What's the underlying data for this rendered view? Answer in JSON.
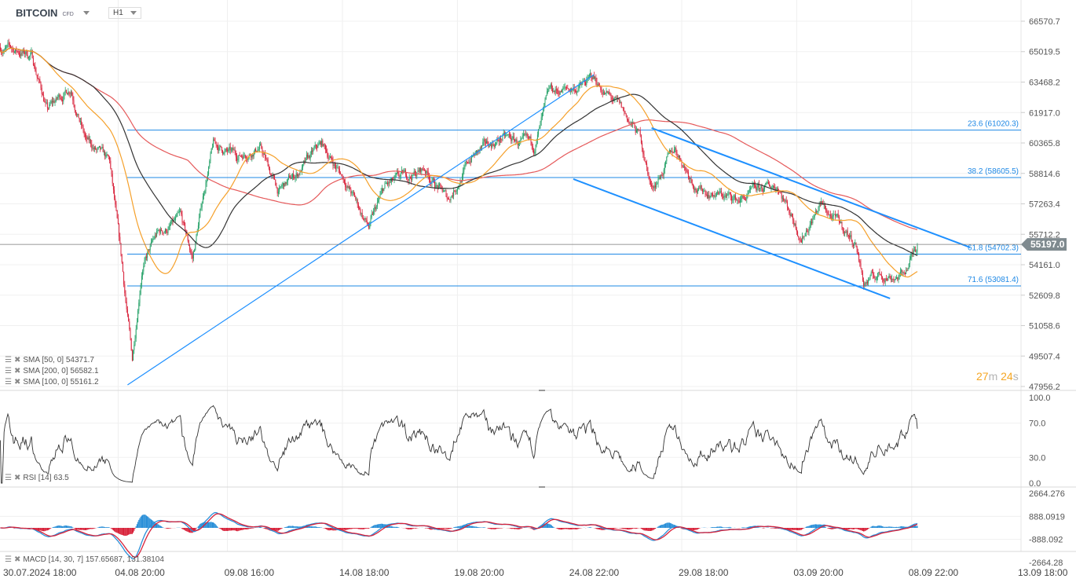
{
  "header": {
    "symbol": "BITCOIN",
    "instrument_type": "CFD",
    "timeframe": "H1"
  },
  "countdown": {
    "minutes": "27",
    "min_unit": "m",
    "seconds": "24",
    "sec_unit": "s"
  },
  "legend": {
    "sma50": "SMA [50, 0] 54371.7",
    "sma200": "SMA [200, 0] 56582.1",
    "sma100": "SMA [100, 0] 55161.2",
    "rsi": "RSI [14] 63.5",
    "macd": "MACD [14, 30, 7] 157.65687, 131.38104"
  },
  "colors": {
    "bull": "#26a269",
    "bear": "#d8223a",
    "sma50": "#f5a02a",
    "sma100": "#333333",
    "sma200": "#e5595a",
    "drawing": "#1e90ff",
    "fib": "#1e88e5",
    "price_tag": "#7f8a8f",
    "macd": "#2a8fd8",
    "signal": "#d8223a"
  },
  "icons": {
    "legend_menu": "hamburger-icon",
    "legend_remove": "close-icon",
    "dropdown": "chevron-down-icon"
  },
  "chart_data": {
    "type": "candlestick",
    "title": "BITCOIN",
    "price_axis": {
      "range": [
        47956.2,
        66570.7
      ],
      "ticks": [
        "66570.7",
        "65019.5",
        "63468.2",
        "61917.0",
        "60365.8",
        "58814.6",
        "57263.4",
        "55712.2",
        "54161.0",
        "52609.8",
        "51058.6",
        "49507.4",
        "47956.2"
      ]
    },
    "time_axis": {
      "start": "2024-07-30T18:00",
      "labels": [
        {
          "t": "2024-07-30T18:00",
          "label": "30.07.2024  18:00"
        },
        {
          "t": "2024-08-04T20:00",
          "label": "04.08  20:00"
        },
        {
          "t": "2024-08-09T16:00",
          "label": "09.08  16:00"
        },
        {
          "t": "2024-08-14T18:00",
          "label": "14.08  18:00"
        },
        {
          "t": "2024-08-19T20:00",
          "label": "19.08  20:00"
        },
        {
          "t": "2024-08-24T22:00",
          "label": "24.08  22:00"
        },
        {
          "t": "2024-08-29T18:00",
          "label": "29.08  18:00"
        },
        {
          "t": "2024-09-03T20:00",
          "label": "03.09  20:00"
        },
        {
          "t": "2024-09-08T22:00",
          "label": "08.09  22:00"
        },
        {
          "t": "2024-09-13T18:00",
          "label": "13.09  18:00"
        }
      ]
    },
    "price_path": [
      [
        "2024-07-30T15:00",
        65250
      ],
      [
        "2024-08-01T00:00",
        64850
      ],
      [
        "2024-08-01T17:00",
        62050
      ],
      [
        "2024-08-02T18:00",
        63250
      ],
      [
        "2024-08-03T10:00",
        60450
      ],
      [
        "2024-08-04T11:00",
        59250
      ],
      [
        "2024-08-05T00:00",
        54040
      ],
      [
        "2024-08-05T11:00",
        49240
      ],
      [
        "2024-08-05T21:00",
        54040
      ],
      [
        "2024-08-06T13:00",
        55640
      ],
      [
        "2024-08-07T14:00",
        56440
      ],
      [
        "2024-08-08T03:00",
        54440
      ],
      [
        "2024-08-08T17:00",
        58450
      ],
      [
        "2024-08-09T01:00",
        60250
      ],
      [
        "2024-08-10T01:00",
        59650
      ],
      [
        "2024-08-11T02:00",
        60250
      ],
      [
        "2024-08-11T22:00",
        57840
      ],
      [
        "2024-08-12T19:00",
        58840
      ],
      [
        "2024-08-13T20:00",
        60250
      ],
      [
        "2024-08-14T21:00",
        58450
      ],
      [
        "2024-08-15T22:00",
        56040
      ],
      [
        "2024-08-16T15:00",
        58040
      ],
      [
        "2024-08-18T09:00",
        59050
      ],
      [
        "2024-08-19T10:00",
        57450
      ],
      [
        "2024-08-20T11:00",
        59650
      ],
      [
        "2024-08-21T20:00",
        60650
      ],
      [
        "2024-08-23T05:00",
        60050
      ],
      [
        "2024-08-23T22:00",
        62850
      ],
      [
        "2024-08-25T07:00",
        63250
      ],
      [
        "2024-08-25T20:00",
        63650
      ],
      [
        "2024-08-27T01:00",
        62050
      ],
      [
        "2024-08-27T22:00",
        60650
      ],
      [
        "2024-08-28T10:00",
        58040
      ],
      [
        "2024-08-29T11:00",
        60050
      ],
      [
        "2024-08-30T12:00",
        58040
      ],
      [
        "2024-09-01T06:00",
        57450
      ],
      [
        "2024-09-03T00:00",
        58250
      ],
      [
        "2024-09-04T01:00",
        55640
      ],
      [
        "2024-09-04T21:00",
        57250
      ],
      [
        "2024-09-06T11:00",
        55240
      ],
      [
        "2024-09-06T19:00",
        53240
      ],
      [
        "2024-09-07T12:00",
        53640
      ],
      [
        "2024-09-08T13:00",
        53640
      ],
      [
        "2024-09-09T04:00",
        55197
      ]
    ],
    "last_price": "55197.0",
    "moving_averages": [
      {
        "name": "SMA [50, 0]",
        "period": 50,
        "value": 54371.7
      },
      {
        "name": "SMA [100, 0]",
        "period": 100,
        "value": 55161.2
      },
      {
        "name": "SMA [200, 0]",
        "period": 200,
        "value": 56582.1
      }
    ],
    "fibonacci": [
      {
        "label": "23.6 (61020.3)",
        "price": 61020.3
      },
      {
        "label": "38.2 (58605.5)",
        "price": 58605.5
      },
      {
        "label": "61.8 (54702.3)",
        "price": 54702.3
      },
      {
        "label": "71.6 (53081.4)",
        "price": 53081.4
      }
    ],
    "trend_lines": [
      {
        "from": [
          "2024-08-05T06:00",
          48037
        ],
        "to": [
          "2024-08-25T21:00",
          63849
        ]
      },
      {
        "from": [
          "2024-08-24T23:00",
          58525
        ],
        "to": [
          "2024-09-07T23:00",
          52440
        ]
      },
      {
        "from": [
          "2024-08-28T10:00",
          61127
        ],
        "to": [
          "2024-09-11T12:00",
          55042
        ]
      }
    ],
    "rsi": {
      "period": 14,
      "value": 63.5,
      "range": [
        0,
        100
      ],
      "ticks": [
        "100.0",
        "70.0",
        "30.0",
        "0.0"
      ]
    },
    "macd": {
      "params": [
        14,
        30,
        7
      ],
      "macd": 157.65687,
      "signal": 131.38104,
      "range": [
        -2664.28,
        2664.276
      ],
      "ticks": [
        "2664.276",
        "888.0919",
        "-888.092",
        "-2664.28"
      ]
    }
  }
}
